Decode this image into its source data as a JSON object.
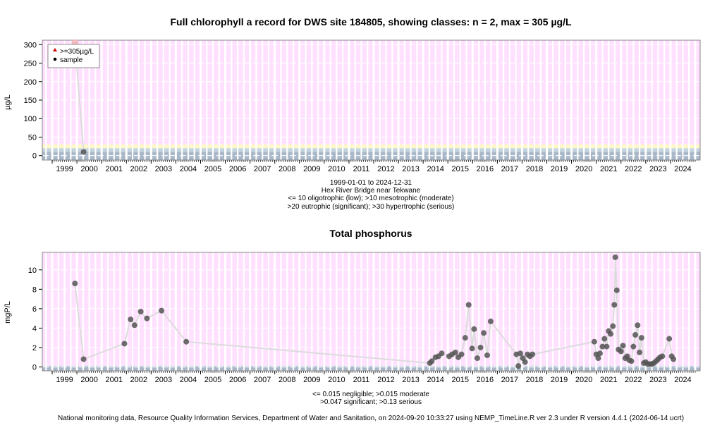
{
  "footer": "National monitoring data, Resource Quality Information Services, Department of Water and Sanitation, on 2024-09-20 10:33:27 using NEMP_TimeLine.R ver 2.3 under R version 4.4.1 (2024-06-14 ucrt)",
  "chart_data": [
    {
      "type": "line",
      "title": "Full chlorophyll a record for DWS site 184805, showing classes: n = 2, max = 305 µg/L",
      "ylabel": "µg/L",
      "xlabel": "",
      "xlim": [
        1998.6,
        2025.2
      ],
      "ylim": [
        -12,
        312
      ],
      "yticks": [
        0,
        50,
        100,
        150,
        200,
        250,
        300
      ],
      "xticks": [
        "1999",
        "2000",
        "2001",
        "2002",
        "2003",
        "2004",
        "2005",
        "2006",
        "2007",
        "2008",
        "2009",
        "2010",
        "2011",
        "2012",
        "2013",
        "2014",
        "2015",
        "2016",
        "2017",
        "2018",
        "2019",
        "2020",
        "2021",
        "2022",
        "2023",
        "2024"
      ],
      "grid": true,
      "legend_position": "top-left",
      "legend": [
        {
          "label": ">=305µg/L",
          "marker": "triangle",
          "color": "#cc0000"
        },
        {
          "label": "sample",
          "marker": "dot",
          "color": "#000000"
        }
      ],
      "bands": [
        {
          "from": -12,
          "to": 10,
          "color": "#a9b8c9"
        },
        {
          "from": 10,
          "to": 20,
          "color": "#c3d3df"
        },
        {
          "from": 20,
          "to": 30,
          "color": "#fff8c4"
        },
        {
          "from": 30,
          "to": 312,
          "color": "#ffe0ff"
        }
      ],
      "series": [
        {
          "x": [
            1999.92,
            2000.27
          ],
          "y": [
            305,
            10
          ]
        }
      ],
      "notes": [
        "1999-01-01 to 2024-12-31",
        "Hex River Bridge near Tekwane",
        "<= 10 oligotrophic (low); >10 mesotrophic (moderate)",
        ">20 eutrophic (significant); >30 hypertrophic (serious)"
      ]
    },
    {
      "type": "line",
      "title": "Total phosphorus",
      "ylabel": "mgP/L",
      "xlabel": "",
      "xlim": [
        1998.6,
        2025.2
      ],
      "ylim": [
        -0.4,
        11.8
      ],
      "yticks": [
        0,
        2,
        4,
        6,
        8,
        10
      ],
      "xticks": [
        "1999",
        "2000",
        "2001",
        "2002",
        "2003",
        "2004",
        "2005",
        "2006",
        "2007",
        "2008",
        "2009",
        "2010",
        "2011",
        "2012",
        "2013",
        "2014",
        "2015",
        "2016",
        "2017",
        "2018",
        "2019",
        "2020",
        "2021",
        "2022",
        "2023",
        "2024"
      ],
      "grid": true,
      "bands": [
        {
          "from": -0.4,
          "to": 0.015,
          "color": "#a9b8c9"
        },
        {
          "from": 0.015,
          "to": 0.13,
          "color": "#c3d3df"
        },
        {
          "from": 0.13,
          "to": 11.8,
          "color": "#ffe0ff"
        }
      ],
      "series": [
        {
          "x": [
            1999.92,
            2000.27,
            2001.92,
            2002.17,
            2002.33,
            2002.58,
            2002.83,
            2003.42,
            2004.42,
            2014.27,
            2014.35,
            2014.5,
            2014.62,
            2014.75,
            2015.05,
            2015.17,
            2015.3,
            2015.42,
            2015.55,
            2015.7,
            2015.84,
            2015.98,
            2016.06,
            2016.19,
            2016.32,
            2016.45,
            2016.59,
            2016.73,
            2017.77,
            2017.85,
            2017.93,
            2018.03,
            2018.12,
            2018.22,
            2018.32,
            2018.42,
            2020.92,
            2021.0,
            2021.08,
            2021.15,
            2021.25,
            2021.33,
            2021.42,
            2021.5,
            2021.58,
            2021.67,
            2021.73,
            2021.77,
            2021.83,
            2021.9,
            2022.0,
            2022.08,
            2022.17,
            2022.25,
            2022.33,
            2022.42,
            2022.5,
            2022.58,
            2022.67,
            2022.75,
            2022.83,
            2022.92,
            2023.0,
            2023.08,
            2023.17,
            2023.25,
            2023.33,
            2023.42,
            2023.5,
            2023.58,
            2023.67,
            2023.95,
            2024.05,
            2024.12
          ],
          "y": [
            8.6,
            0.8,
            2.4,
            4.9,
            4.3,
            5.7,
            5.0,
            5.8,
            2.6,
            0.4,
            0.6,
            1.0,
            1.1,
            1.4,
            1.1,
            1.3,
            1.5,
            1.0,
            1.3,
            3.0,
            6.4,
            1.9,
            3.9,
            0.9,
            2.0,
            3.5,
            1.2,
            4.7,
            1.3,
            0.1,
            1.4,
            0.9,
            0.5,
            1.3,
            1.1,
            1.3,
            2.6,
            1.3,
            0.9,
            1.4,
            2.1,
            2.9,
            2.1,
            3.7,
            3.4,
            4.2,
            6.4,
            11.3,
            7.9,
            1.8,
            1.6,
            2.2,
            0.9,
            1.1,
            0.7,
            0.6,
            2.1,
            3.3,
            4.3,
            1.5,
            3.0,
            0.4,
            0.5,
            0.3,
            0.3,
            0.3,
            0.4,
            0.6,
            0.8,
            1.0,
            1.1,
            2.9,
            1.1,
            0.8
          ]
        }
      ],
      "notes": [
        "<= 0.015 negligible; >0.015 moderate",
        ">0.047 significant; >0.13 serious"
      ]
    }
  ]
}
